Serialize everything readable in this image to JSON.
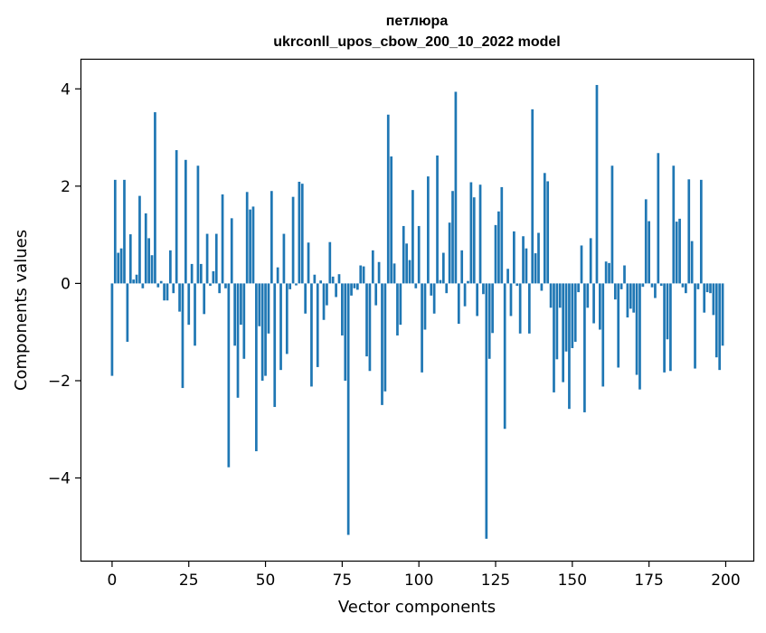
{
  "chart_data": {
    "type": "bar",
    "title": "петлюра",
    "subtitle": "ukrconll_upos_cbow_200_10_2022 model",
    "xlabel": "Vector components",
    "ylabel": "Components values",
    "xlim": [
      -10,
      209
    ],
    "ylim": [
      -5.7,
      4.6
    ],
    "xticks": [
      0,
      25,
      50,
      75,
      100,
      125,
      150,
      175,
      200
    ],
    "xtick_labels": [
      "0",
      "25",
      "50",
      "75",
      "100",
      "125",
      "150",
      "175",
      "200"
    ],
    "yticks": [
      -4,
      -2,
      0,
      2,
      4
    ],
    "ytick_labels": [
      "−4",
      "−2",
      "0",
      "2",
      "4"
    ],
    "grid": false,
    "bar_color": "#1f77b4",
    "values": [
      -1.9,
      2.13,
      0.63,
      0.72,
      2.13,
      -1.2,
      1.01,
      0.08,
      0.18,
      1.8,
      -0.1,
      1.44,
      0.93,
      0.58,
      3.52,
      -0.08,
      0.05,
      -0.35,
      -0.35,
      0.68,
      -0.2,
      2.74,
      -0.58,
      -2.15,
      2.54,
      -0.85,
      0.4,
      -1.28,
      2.42,
      0.4,
      -0.63,
      1.02,
      -0.05,
      0.25,
      1.02,
      -0.2,
      1.83,
      -0.1,
      -3.78,
      1.34,
      -1.28,
      -2.35,
      -0.85,
      -1.55,
      1.88,
      1.52,
      1.58,
      -3.45,
      -0.88,
      -2.0,
      -1.9,
      -1.03,
      1.9,
      -2.54,
      0.33,
      -1.78,
      1.02,
      -1.45,
      -0.12,
      1.78,
      -0.04,
      2.09,
      2.05,
      -0.62,
      0.84,
      -2.12,
      0.18,
      -1.72,
      0.06,
      -0.75,
      -0.45,
      0.85,
      0.14,
      -0.28,
      0.19,
      -1.07,
      -2.0,
      -5.17,
      -0.25,
      -0.1,
      -0.13,
      0.37,
      0.35,
      -1.5,
      -1.8,
      0.68,
      -0.45,
      0.44,
      -2.5,
      -2.22,
      3.47,
      2.61,
      0.41,
      -1.07,
      -0.85,
      1.18,
      0.82,
      0.48,
      1.92,
      -0.1,
      1.18,
      -1.83,
      -0.95,
      2.2,
      -0.25,
      -0.62,
      2.63,
      0.07,
      0.63,
      -0.2,
      1.25,
      1.9,
      3.94,
      -0.83,
      0.68,
      -0.47,
      0.05,
      2.08,
      1.77,
      -0.67,
      2.03,
      -0.22,
      -5.25,
      -1.55,
      -1.02,
      1.2,
      1.48,
      1.98,
      -2.99,
      0.3,
      -0.67,
      1.07,
      -0.05,
      -1.03,
      0.97,
      0.72,
      -1.03,
      3.58,
      0.62,
      1.04,
      -0.15,
      2.27,
      2.1,
      -0.5,
      -2.24,
      -1.56,
      -0.5,
      -2.03,
      -1.4,
      -2.58,
      -1.33,
      -1.2,
      -0.18,
      0.78,
      -2.65,
      -0.5,
      0.93,
      -0.82,
      4.08,
      -0.95,
      -2.12,
      0.45,
      0.42,
      2.42,
      -0.33,
      -1.73,
      -0.12,
      0.37,
      -0.7,
      -0.52,
      -0.6,
      -1.88,
      -2.18,
      -0.07,
      1.73,
      1.28,
      -0.08,
      -0.3,
      2.68,
      -0.05,
      -1.83,
      -1.15,
      -1.8,
      2.42,
      1.27,
      1.33,
      -0.08,
      -0.2,
      2.14,
      0.87,
      -1.75,
      -0.12,
      2.13,
      -0.6,
      -0.18,
      -0.2,
      -0.65,
      -1.52,
      -1.78,
      -1.28
    ]
  }
}
